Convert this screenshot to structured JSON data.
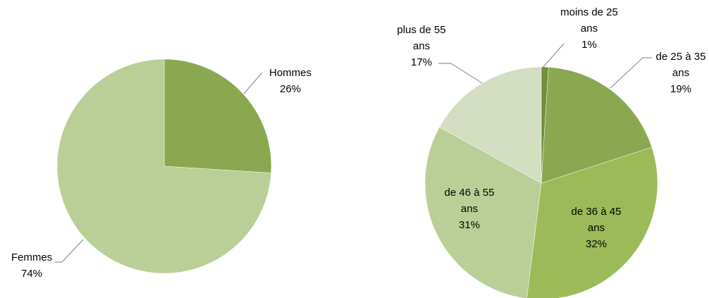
{
  "chart_data": [
    {
      "type": "pie",
      "categories": [
        "Hommes",
        "Femmes"
      ],
      "values": [
        26,
        74
      ],
      "value_labels": [
        "26%",
        "74%"
      ],
      "colors": [
        "#8aa84f",
        "#b9cf97"
      ]
    },
    {
      "type": "pie",
      "categories": [
        "moins de 25 ans",
        "de 25 à 35 ans",
        "de 36 à 45 ans",
        "de 46 à 55 ans",
        "plus de 55 ans"
      ],
      "values": [
        1,
        19,
        32,
        31,
        17
      ],
      "value_labels": [
        "1%",
        "19%",
        "32%",
        "31%",
        "17%"
      ],
      "colors": [
        "#6f8f3a",
        "#8aa84f",
        "#9bbb59",
        "#b9cf97",
        "#d3dfc0"
      ]
    }
  ]
}
